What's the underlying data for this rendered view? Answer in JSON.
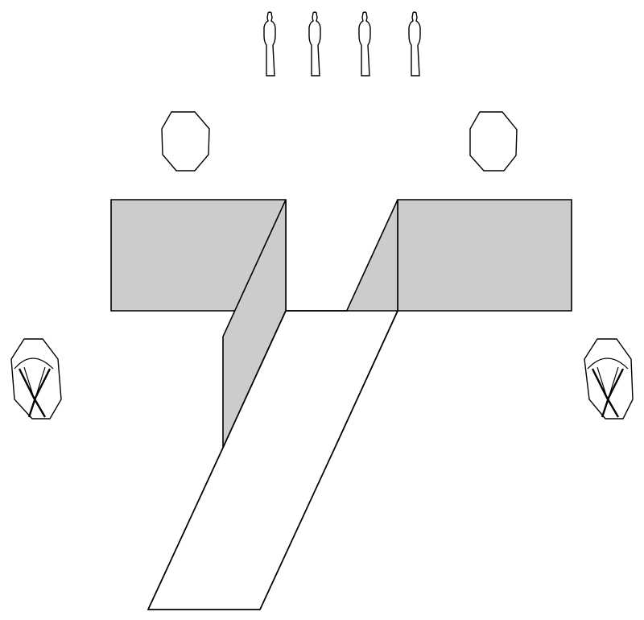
{
  "colors": {
    "background": "#ffffff",
    "panel_fill": "#cccccc",
    "floor_fill": "#ffffff",
    "stroke": "#000000"
  },
  "scene": {
    "standing_figures": 4,
    "overhead_lights": 2,
    "side_reflectors": 2,
    "wall_panels": 2,
    "floor_strips": 1
  }
}
